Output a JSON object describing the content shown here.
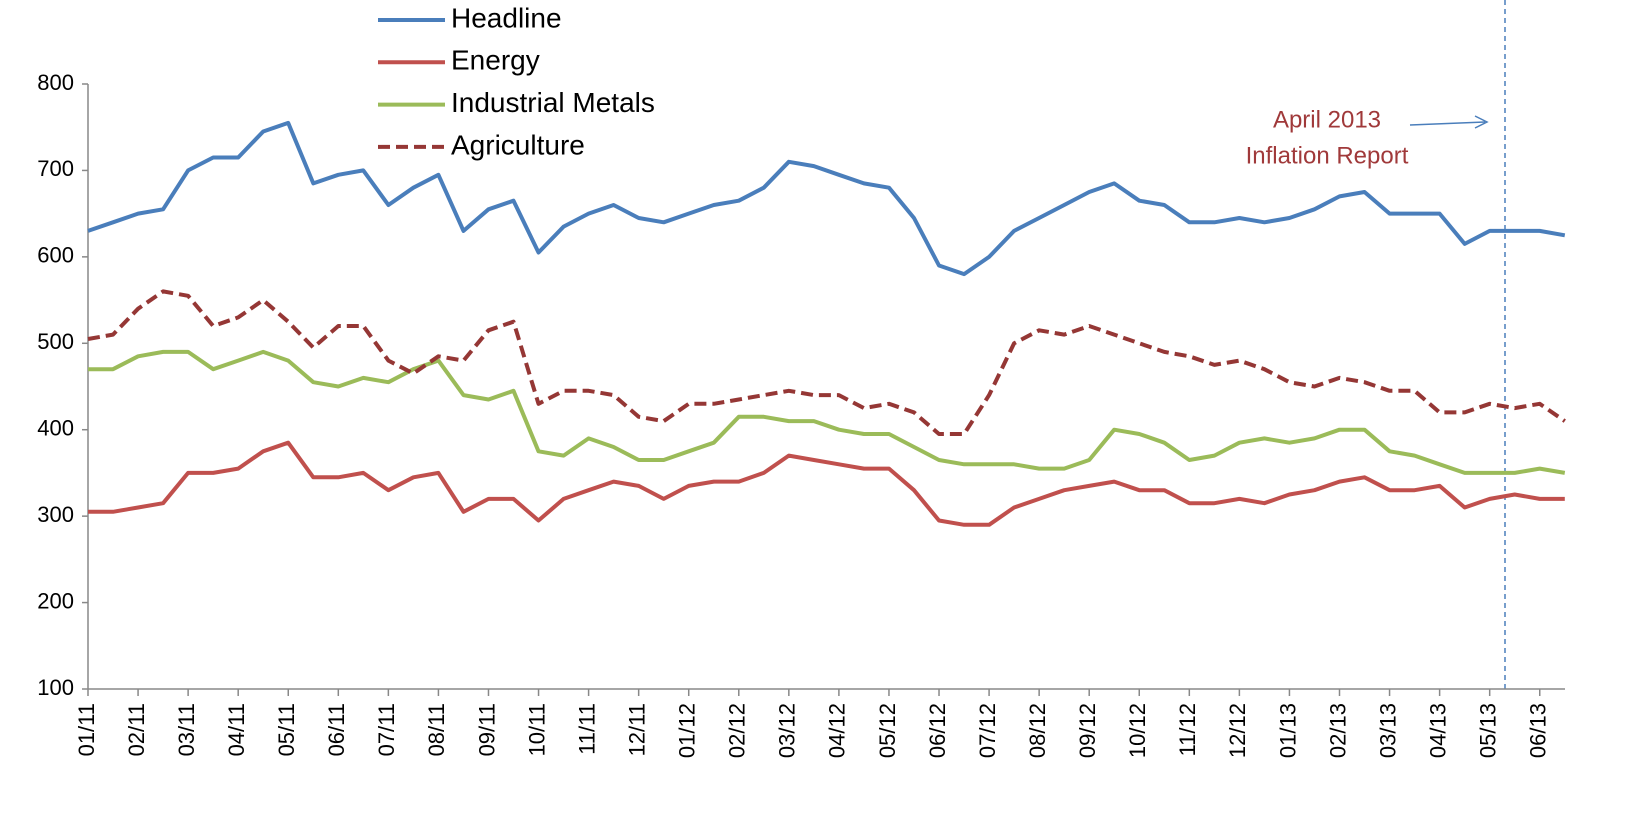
{
  "chart_data": {
    "type": "line",
    "categories": [
      "01/11",
      null,
      "02/11",
      null,
      "03/11",
      null,
      "04/11",
      null,
      "05/11",
      null,
      "06/11",
      null,
      "07/11",
      null,
      "08/11",
      null,
      "09/11",
      null,
      "10/11",
      null,
      "11/11",
      null,
      "12/11",
      null,
      "01/12",
      null,
      "02/12",
      null,
      "03/12",
      null,
      "04/12",
      null,
      "05/12",
      null,
      "06/12",
      null,
      "07/12",
      null,
      "08/12",
      null,
      "09/12",
      null,
      "10/12",
      null,
      "11/12",
      null,
      "12/12",
      null,
      "01/13",
      null,
      "02/13",
      null,
      "03/13",
      null,
      "04/13",
      null,
      "05/13",
      null,
      "06/13",
      null
    ],
    "series": [
      {
        "name": "Headline",
        "color": "#4a7ebb",
        "dashed": false,
        "values": [
          630,
          640,
          650,
          655,
          700,
          715,
          715,
          745,
          755,
          685,
          695,
          700,
          660,
          680,
          695,
          630,
          655,
          665,
          605,
          635,
          650,
          660,
          645,
          640,
          650,
          660,
          665,
          680,
          710,
          705,
          695,
          685,
          680,
          645,
          590,
          580,
          600,
          630,
          645,
          660,
          675,
          685,
          665,
          660,
          640,
          640,
          645,
          640,
          645,
          655,
          670,
          675,
          650,
          650,
          650,
          615,
          630,
          630,
          630,
          625
        ]
      },
      {
        "name": "Energy",
        "color": "#c0504d",
        "dashed": false,
        "values": [
          305,
          305,
          310,
          315,
          350,
          350,
          355,
          375,
          385,
          345,
          345,
          350,
          330,
          345,
          350,
          305,
          320,
          320,
          295,
          320,
          330,
          340,
          335,
          320,
          335,
          340,
          340,
          350,
          370,
          365,
          360,
          355,
          355,
          330,
          295,
          290,
          290,
          310,
          320,
          330,
          335,
          340,
          330,
          330,
          315,
          315,
          320,
          315,
          325,
          330,
          340,
          345,
          330,
          330,
          335,
          310,
          320,
          325,
          320,
          320
        ]
      },
      {
        "name": "Industrial Metals",
        "color": "#9bbb59",
        "dashed": false,
        "values": [
          470,
          470,
          485,
          490,
          490,
          470,
          480,
          490,
          480,
          455,
          450,
          460,
          455,
          470,
          480,
          440,
          435,
          445,
          375,
          370,
          390,
          380,
          365,
          365,
          375,
          385,
          415,
          415,
          410,
          410,
          400,
          395,
          395,
          380,
          365,
          360,
          360,
          360,
          355,
          355,
          365,
          400,
          395,
          385,
          365,
          370,
          385,
          390,
          385,
          390,
          400,
          400,
          375,
          370,
          360,
          350,
          350,
          350,
          355,
          350
        ]
      },
      {
        "name": "Agriculture",
        "color": "#953735",
        "dashed": true,
        "values": [
          505,
          510,
          540,
          560,
          555,
          520,
          530,
          550,
          525,
          495,
          520,
          520,
          480,
          465,
          485,
          480,
          515,
          525,
          430,
          445,
          445,
          440,
          415,
          410,
          430,
          430,
          435,
          440,
          445,
          440,
          440,
          425,
          430,
          420,
          395,
          395,
          440,
          500,
          515,
          510,
          520,
          510,
          500,
          490,
          485,
          475,
          480,
          470,
          455,
          450,
          460,
          455,
          445,
          445,
          420,
          420,
          430,
          425,
          430,
          410
        ]
      }
    ],
    "ylim": [
      100,
      800
    ],
    "yticks": [
      100,
      200,
      300,
      400,
      500,
      600,
      700,
      800
    ],
    "grid": false,
    "annotation": [
      "April 2013",
      "Inflation Report"
    ]
  }
}
